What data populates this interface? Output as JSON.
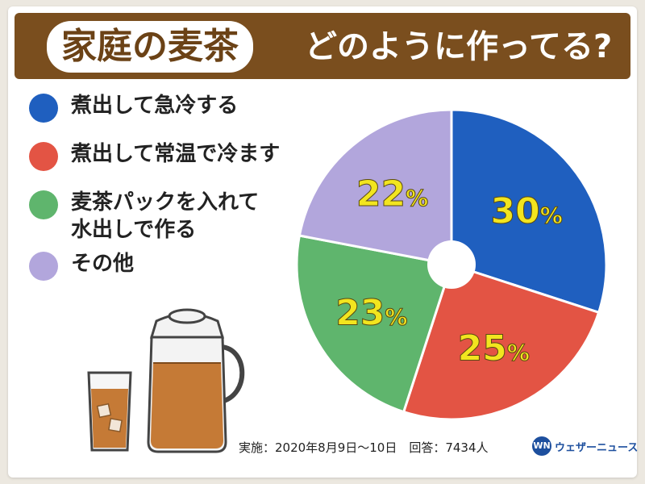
{
  "header": {
    "title_main": "家庭の麦茶",
    "title_sub": "どのように作ってる?"
  },
  "chart_data": {
    "type": "pie",
    "categories": [
      "煮出して急冷する",
      "煮出して常温で冷ます",
      "麦茶パックを入れて水出しで作る",
      "その他"
    ],
    "values": [
      30,
      25,
      23,
      22
    ],
    "labels": [
      "30%",
      "25%",
      "23%",
      "22%"
    ],
    "colors": [
      "#1f5fbf",
      "#e35444",
      "#5fb56d",
      "#b2a6dc"
    ],
    "label_color": "#f2e51f",
    "legend_placement": "left"
  },
  "legend": {
    "items": [
      {
        "label": "煮出して急冷する",
        "color": "#1f5fbf"
      },
      {
        "label": "煮出して常温で冷ます",
        "color": "#e35444"
      },
      {
        "label": "麦茶パックを入れて\n水出しで作る",
        "color": "#5fb56d"
      },
      {
        "label": "その他",
        "color": "#b2a6dc"
      }
    ]
  },
  "footer": {
    "note": "実施：2020年8月9日〜10日　回答：7434人",
    "logo_mark": "WN",
    "logo_text": "ウェザーニュース"
  }
}
